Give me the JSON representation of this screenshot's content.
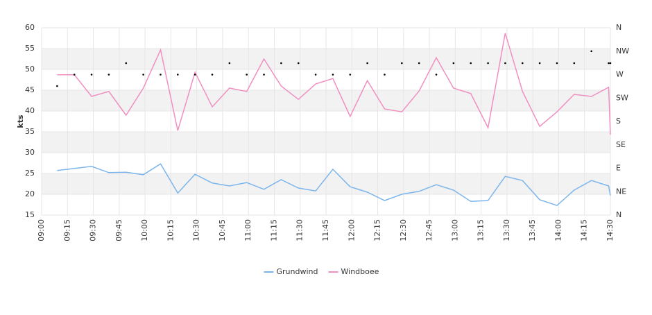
{
  "chart_data": {
    "type": "line",
    "ylabel": "kts",
    "x": [
      "09:09",
      "09:19",
      "09:29",
      "09:39",
      "09:49",
      "09:59",
      "10:09",
      "10:19",
      "10:29",
      "10:39",
      "10:49",
      "10:59",
      "11:09",
      "11:19",
      "11:29",
      "11:39",
      "11:49",
      "11:59",
      "12:09",
      "12:19",
      "12:29",
      "12:39",
      "12:49",
      "12:59",
      "13:09",
      "13:19",
      "13:29",
      "13:39",
      "13:49",
      "13:59",
      "14:09",
      "14:19",
      "14:29",
      "14:30"
    ],
    "xlim": [
      "09:00",
      "14:30"
    ],
    "xticks": [
      "09:00",
      "09:15",
      "09:30",
      "09:45",
      "10:00",
      "10:15",
      "10:30",
      "10:45",
      "11:00",
      "11:15",
      "11:30",
      "11:45",
      "12:00",
      "12:15",
      "12:30",
      "12:45",
      "13:00",
      "13:15",
      "13:30",
      "13:45",
      "14:00",
      "14:15",
      "14:30"
    ],
    "ylim": [
      15,
      60
    ],
    "yticks": [
      15,
      20,
      25,
      30,
      35,
      40,
      45,
      50,
      55,
      60
    ],
    "y2lim": [
      0,
      360
    ],
    "y2ticks": [
      {
        "value": 0,
        "label": "N"
      },
      {
        "value": 45,
        "label": "NE"
      },
      {
        "value": 90,
        "label": "E"
      },
      {
        "value": 135,
        "label": "SE"
      },
      {
        "value": 180,
        "label": "S"
      },
      {
        "value": 225,
        "label": "SW"
      },
      {
        "value": 270,
        "label": "W"
      },
      {
        "value": 315,
        "label": "NW"
      },
      {
        "value": 360,
        "label": "N"
      }
    ],
    "grid": true,
    "legend": "bottom",
    "series": [
      {
        "name": "Grundwind",
        "color": "#7cb5ec",
        "values": [
          25.7,
          26.2,
          26.7,
          25.2,
          25.3,
          24.7,
          27.3,
          20.3,
          24.8,
          22.7,
          22.0,
          22.8,
          21.2,
          23.5,
          21.5,
          20.8,
          26.0,
          21.8,
          20.5,
          18.5,
          20.0,
          20.7,
          22.3,
          21.0,
          18.3,
          18.5,
          24.3,
          23.3,
          18.7,
          17.3,
          21.0,
          23.3,
          22.0,
          19.7
        ]
      },
      {
        "name": "Windboee",
        "color": "#f08fc0",
        "values": [
          48.7,
          48.7,
          43.5,
          44.7,
          39.0,
          45.5,
          54.7,
          35.3,
          49.3,
          41.0,
          45.5,
          44.7,
          52.5,
          46.0,
          42.8,
          46.5,
          47.8,
          38.7,
          47.3,
          40.5,
          39.8,
          44.8,
          52.8,
          45.5,
          44.2,
          36.0,
          58.7,
          44.7,
          36.3,
          39.8,
          44.0,
          43.5,
          45.7,
          34.3
        ]
      }
    ],
    "direction": {
      "axis": "y2",
      "color": "#000000",
      "values": [
        248,
        270,
        270,
        270,
        292,
        270,
        270,
        270,
        270,
        270,
        292,
        270,
        270,
        292,
        292,
        270,
        270,
        270,
        292,
        270,
        292,
        292,
        270,
        292,
        292,
        292,
        292,
        292,
        292,
        292,
        292,
        315,
        292,
        292
      ]
    }
  }
}
